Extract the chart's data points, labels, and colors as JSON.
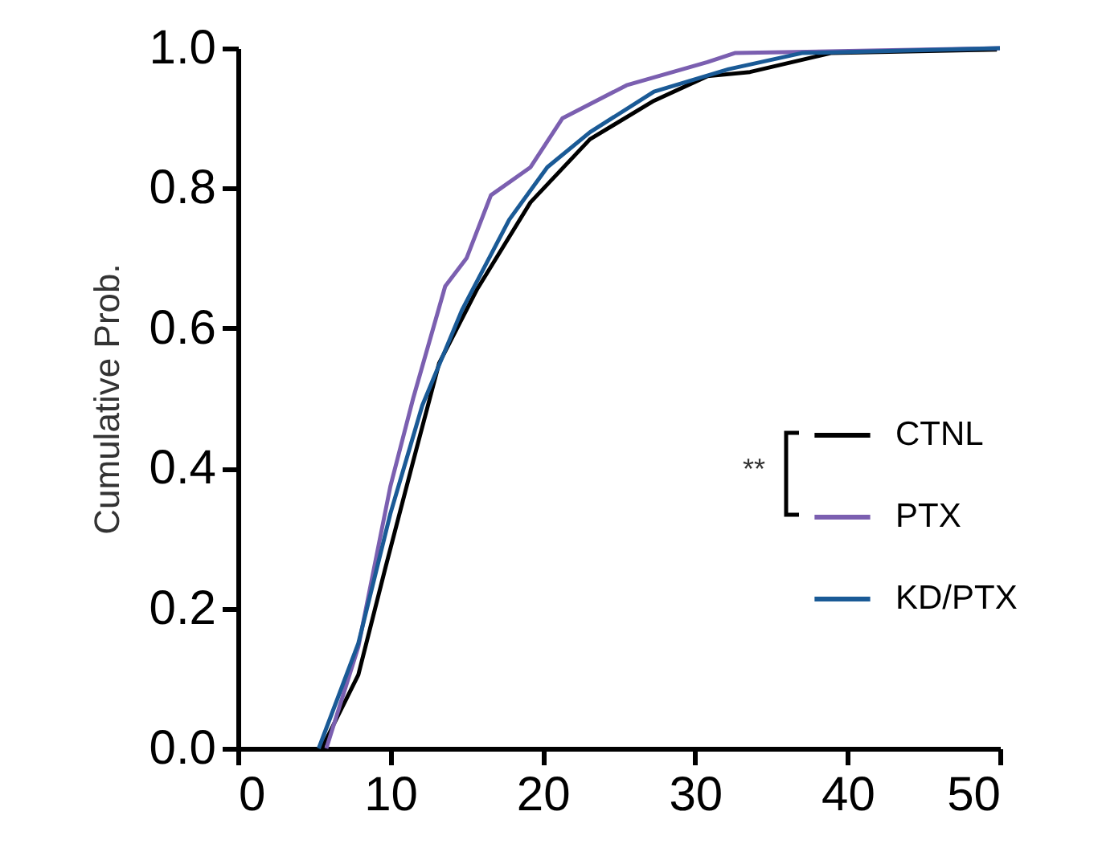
{
  "chart_data": {
    "type": "line",
    "ylabel": "Cumulative Prob.",
    "xlim": [
      0,
      50
    ],
    "ylim": [
      0,
      1
    ],
    "xticks": [
      0,
      10,
      20,
      30,
      40,
      50
    ],
    "yticks": [
      {
        "value": 0,
        "label": "0.0"
      },
      {
        "value": 0.2,
        "label": "0.2"
      },
      {
        "value": 0.4,
        "label": "0.4"
      },
      {
        "value": 0.6,
        "label": "0.6"
      },
      {
        "value": 0.8,
        "label": "0.8"
      },
      {
        "value": 1,
        "label": "1.0"
      }
    ],
    "grid": false,
    "legend": "right",
    "marker": "none",
    "line_style": "solid",
    "annotations": [
      "**"
    ],
    "series": [
      {
        "name": "CTNL",
        "color": "#000000",
        "x": [
          5.5,
          7.9,
          9.7,
          11.5,
          13.2,
          15.7,
          19.2,
          23.1,
          27.3,
          30.8,
          33.6,
          38.9,
          49.8
        ],
        "values": [
          0,
          0.105,
          0.26,
          0.41,
          0.55,
          0.656,
          0.78,
          0.87,
          0.925,
          0.96,
          0.966,
          0.993,
          0.998
        ]
      },
      {
        "name": "PTX",
        "color": "#7b5fb0",
        "x": [
          5.8,
          7.9,
          10,
          11.5,
          13.6,
          15,
          16.6,
          19.2,
          21.3,
          25.5,
          30.8,
          32.6,
          50
        ],
        "values": [
          0,
          0.145,
          0.374,
          0.5,
          0.66,
          0.7,
          0.79,
          0.83,
          0.9,
          0.947,
          0.98,
          0.993,
          1
        ]
      },
      {
        "name": "KD/PTX",
        "color": "#1a5a96",
        "x": [
          5.3,
          7.9,
          10,
          12.1,
          14.7,
          17.8,
          20.3,
          23.1,
          27.3,
          32.2,
          37,
          50
        ],
        "values": [
          0,
          0.15,
          0.335,
          0.49,
          0.626,
          0.755,
          0.83,
          0.88,
          0.938,
          0.97,
          0.993,
          1
        ]
      }
    ]
  }
}
